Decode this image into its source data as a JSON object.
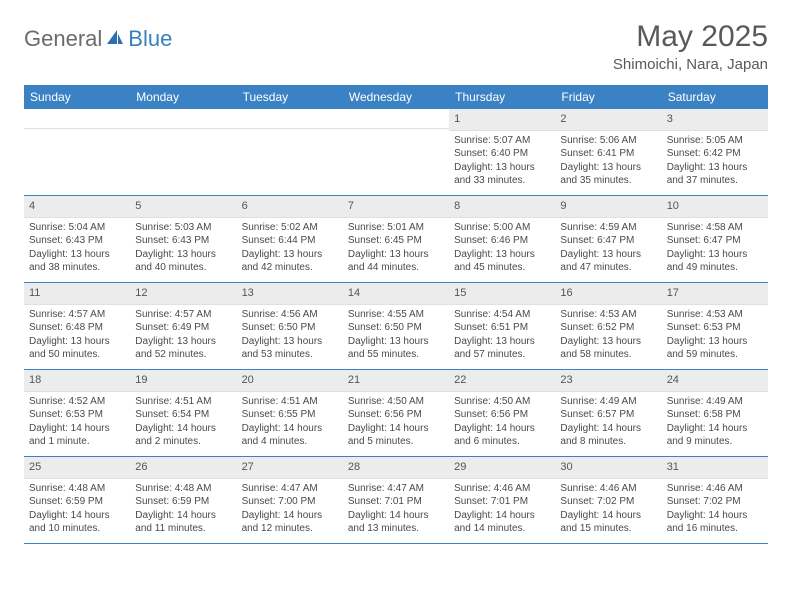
{
  "brand": {
    "part1": "General",
    "part2": "Blue",
    "color_gray": "#6b6b6b",
    "color_blue": "#3a7fbf"
  },
  "title": "May 2025",
  "location": "Shimoichi, Nara, Japan",
  "header_bg": "#3b82c4",
  "header_text_color": "#ffffff",
  "daynum_bg": "#ececec",
  "divider_color": "#3b82c4",
  "text_color": "#4a4a4a",
  "day_names": [
    "Sunday",
    "Monday",
    "Tuesday",
    "Wednesday",
    "Thursday",
    "Friday",
    "Saturday"
  ],
  "weeks": [
    [
      {
        "n": "",
        "lines": [
          "",
          "",
          "",
          ""
        ]
      },
      {
        "n": "",
        "lines": [
          "",
          "",
          "",
          ""
        ]
      },
      {
        "n": "",
        "lines": [
          "",
          "",
          "",
          ""
        ]
      },
      {
        "n": "",
        "lines": [
          "",
          "",
          "",
          ""
        ]
      },
      {
        "n": "1",
        "lines": [
          "Sunrise: 5:07 AM",
          "Sunset: 6:40 PM",
          "Daylight: 13 hours",
          "and 33 minutes."
        ]
      },
      {
        "n": "2",
        "lines": [
          "Sunrise: 5:06 AM",
          "Sunset: 6:41 PM",
          "Daylight: 13 hours",
          "and 35 minutes."
        ]
      },
      {
        "n": "3",
        "lines": [
          "Sunrise: 5:05 AM",
          "Sunset: 6:42 PM",
          "Daylight: 13 hours",
          "and 37 minutes."
        ]
      }
    ],
    [
      {
        "n": "4",
        "lines": [
          "Sunrise: 5:04 AM",
          "Sunset: 6:43 PM",
          "Daylight: 13 hours",
          "and 38 minutes."
        ]
      },
      {
        "n": "5",
        "lines": [
          "Sunrise: 5:03 AM",
          "Sunset: 6:43 PM",
          "Daylight: 13 hours",
          "and 40 minutes."
        ]
      },
      {
        "n": "6",
        "lines": [
          "Sunrise: 5:02 AM",
          "Sunset: 6:44 PM",
          "Daylight: 13 hours",
          "and 42 minutes."
        ]
      },
      {
        "n": "7",
        "lines": [
          "Sunrise: 5:01 AM",
          "Sunset: 6:45 PM",
          "Daylight: 13 hours",
          "and 44 minutes."
        ]
      },
      {
        "n": "8",
        "lines": [
          "Sunrise: 5:00 AM",
          "Sunset: 6:46 PM",
          "Daylight: 13 hours",
          "and 45 minutes."
        ]
      },
      {
        "n": "9",
        "lines": [
          "Sunrise: 4:59 AM",
          "Sunset: 6:47 PM",
          "Daylight: 13 hours",
          "and 47 minutes."
        ]
      },
      {
        "n": "10",
        "lines": [
          "Sunrise: 4:58 AM",
          "Sunset: 6:47 PM",
          "Daylight: 13 hours",
          "and 49 minutes."
        ]
      }
    ],
    [
      {
        "n": "11",
        "lines": [
          "Sunrise: 4:57 AM",
          "Sunset: 6:48 PM",
          "Daylight: 13 hours",
          "and 50 minutes."
        ]
      },
      {
        "n": "12",
        "lines": [
          "Sunrise: 4:57 AM",
          "Sunset: 6:49 PM",
          "Daylight: 13 hours",
          "and 52 minutes."
        ]
      },
      {
        "n": "13",
        "lines": [
          "Sunrise: 4:56 AM",
          "Sunset: 6:50 PM",
          "Daylight: 13 hours",
          "and 53 minutes."
        ]
      },
      {
        "n": "14",
        "lines": [
          "Sunrise: 4:55 AM",
          "Sunset: 6:50 PM",
          "Daylight: 13 hours",
          "and 55 minutes."
        ]
      },
      {
        "n": "15",
        "lines": [
          "Sunrise: 4:54 AM",
          "Sunset: 6:51 PM",
          "Daylight: 13 hours",
          "and 57 minutes."
        ]
      },
      {
        "n": "16",
        "lines": [
          "Sunrise: 4:53 AM",
          "Sunset: 6:52 PM",
          "Daylight: 13 hours",
          "and 58 minutes."
        ]
      },
      {
        "n": "17",
        "lines": [
          "Sunrise: 4:53 AM",
          "Sunset: 6:53 PM",
          "Daylight: 13 hours",
          "and 59 minutes."
        ]
      }
    ],
    [
      {
        "n": "18",
        "lines": [
          "Sunrise: 4:52 AM",
          "Sunset: 6:53 PM",
          "Daylight: 14 hours",
          "and 1 minute."
        ]
      },
      {
        "n": "19",
        "lines": [
          "Sunrise: 4:51 AM",
          "Sunset: 6:54 PM",
          "Daylight: 14 hours",
          "and 2 minutes."
        ]
      },
      {
        "n": "20",
        "lines": [
          "Sunrise: 4:51 AM",
          "Sunset: 6:55 PM",
          "Daylight: 14 hours",
          "and 4 minutes."
        ]
      },
      {
        "n": "21",
        "lines": [
          "Sunrise: 4:50 AM",
          "Sunset: 6:56 PM",
          "Daylight: 14 hours",
          "and 5 minutes."
        ]
      },
      {
        "n": "22",
        "lines": [
          "Sunrise: 4:50 AM",
          "Sunset: 6:56 PM",
          "Daylight: 14 hours",
          "and 6 minutes."
        ]
      },
      {
        "n": "23",
        "lines": [
          "Sunrise: 4:49 AM",
          "Sunset: 6:57 PM",
          "Daylight: 14 hours",
          "and 8 minutes."
        ]
      },
      {
        "n": "24",
        "lines": [
          "Sunrise: 4:49 AM",
          "Sunset: 6:58 PM",
          "Daylight: 14 hours",
          "and 9 minutes."
        ]
      }
    ],
    [
      {
        "n": "25",
        "lines": [
          "Sunrise: 4:48 AM",
          "Sunset: 6:59 PM",
          "Daylight: 14 hours",
          "and 10 minutes."
        ]
      },
      {
        "n": "26",
        "lines": [
          "Sunrise: 4:48 AM",
          "Sunset: 6:59 PM",
          "Daylight: 14 hours",
          "and 11 minutes."
        ]
      },
      {
        "n": "27",
        "lines": [
          "Sunrise: 4:47 AM",
          "Sunset: 7:00 PM",
          "Daylight: 14 hours",
          "and 12 minutes."
        ]
      },
      {
        "n": "28",
        "lines": [
          "Sunrise: 4:47 AM",
          "Sunset: 7:01 PM",
          "Daylight: 14 hours",
          "and 13 minutes."
        ]
      },
      {
        "n": "29",
        "lines": [
          "Sunrise: 4:46 AM",
          "Sunset: 7:01 PM",
          "Daylight: 14 hours",
          "and 14 minutes."
        ]
      },
      {
        "n": "30",
        "lines": [
          "Sunrise: 4:46 AM",
          "Sunset: 7:02 PM",
          "Daylight: 14 hours",
          "and 15 minutes."
        ]
      },
      {
        "n": "31",
        "lines": [
          "Sunrise: 4:46 AM",
          "Sunset: 7:02 PM",
          "Daylight: 14 hours",
          "and 16 minutes."
        ]
      }
    ]
  ]
}
